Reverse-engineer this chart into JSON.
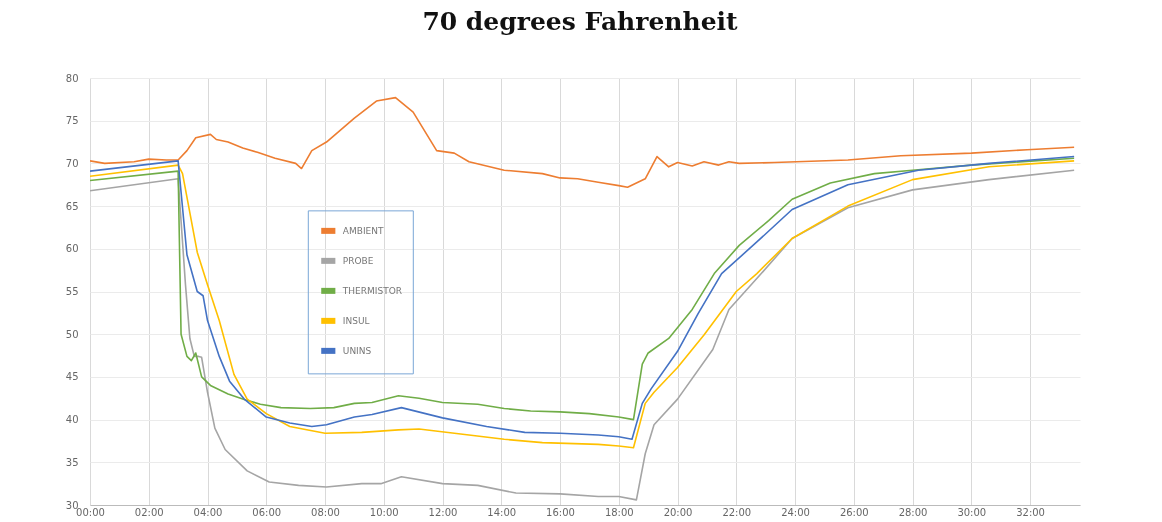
{
  "chart_data": {
    "type": "line",
    "title": "70 degrees Fahrenheit",
    "xlim": [
      0,
      33.7
    ],
    "xticks": [
      {
        "value": 0,
        "label": "00:00"
      },
      {
        "value": 2,
        "label": "02:00"
      },
      {
        "value": 4,
        "label": "04:00"
      },
      {
        "value": 6,
        "label": "06:00"
      },
      {
        "value": 8,
        "label": "08:00"
      },
      {
        "value": 10,
        "label": "10:00"
      },
      {
        "value": 12,
        "label": "12:00"
      },
      {
        "value": 14,
        "label": "14:00"
      },
      {
        "value": 16,
        "label": "16:00"
      },
      {
        "value": 18,
        "label": "18:00"
      },
      {
        "value": 20,
        "label": "20:00"
      },
      {
        "value": 22,
        "label": "22:00"
      },
      {
        "value": 24,
        "label": "24:00"
      },
      {
        "value": 26,
        "label": "26:00"
      },
      {
        "value": 28,
        "label": "28:00"
      },
      {
        "value": 30,
        "label": "30:00"
      },
      {
        "value": 32,
        "label": "32:00"
      }
    ],
    "ylim": [
      30,
      80
    ],
    "yticks": [
      30,
      35,
      40,
      45,
      50,
      55,
      60,
      65,
      70,
      75,
      80
    ],
    "grid": true,
    "legend": "left",
    "marker": "none",
    "line_style": "solid",
    "series": [
      {
        "name": "AMBIENT",
        "color": "#ed7d31",
        "x": [
          0,
          0.5,
          1.5,
          2,
          2.6,
          3.0,
          3.3,
          3.6,
          4.1,
          4.3,
          4.7,
          5.2,
          5.7,
          6.3,
          7.0,
          7.2,
          7.55,
          8.05,
          9.0,
          9.75,
          10.4,
          11.0,
          11.8,
          12.4,
          12.9,
          14.1,
          15.4,
          16.0,
          16.6,
          17.3,
          18.0,
          18.3,
          18.9,
          19.3,
          19.7,
          20.0,
          20.5,
          20.9,
          21.4,
          21.75,
          22.1,
          23.3,
          25.8,
          27.6,
          30.0,
          31.9,
          33.5
        ],
        "values": [
          70.3,
          70.0,
          70.2,
          70.5,
          70.4,
          70.4,
          71.5,
          73,
          73.4,
          72.8,
          72.5,
          71.8,
          71.3,
          70.6,
          70,
          69.4,
          71.5,
          72.5,
          75.3,
          77.3,
          77.7,
          76,
          71.5,
          71.2,
          70.2,
          69.2,
          68.8,
          68.3,
          68.2,
          67.8,
          67.4,
          67.2,
          68.2,
          70.8,
          69.6,
          70.1,
          69.7,
          70.2,
          69.8,
          70.2,
          70,
          70.1,
          70.4,
          70.9,
          71.2,
          71.6,
          71.9
        ]
      },
      {
        "name": "PROBE",
        "color": "#a5a5a5",
        "x": [
          0,
          3.0,
          3.25,
          3.4,
          3.55,
          3.7,
          3.8,
          4.0,
          4.25,
          4.6,
          5.35,
          6.1,
          7.1,
          8.05,
          9.25,
          9.9,
          10.6,
          12.0,
          13.2,
          14.5,
          16.0,
          17.3,
          18.0,
          18.6,
          18.9,
          19.2,
          20.0,
          21.2,
          21.75,
          22.85,
          23.9,
          25.8,
          28.0,
          30.6,
          33.5
        ],
        "values": [
          66.8,
          68.2,
          55.8,
          49.5,
          47.4,
          47.4,
          47.3,
          43.2,
          39,
          36.5,
          34,
          32.7,
          32.3,
          32.1,
          32.5,
          32.5,
          33.3,
          32.5,
          32.3,
          31.4,
          31.3,
          31,
          31,
          30.6,
          36,
          39.4,
          42.4,
          48.2,
          52.9,
          57.1,
          61.2,
          64.8,
          66.9,
          68.1,
          69.2
        ]
      },
      {
        "name": "THERMISTOR",
        "color": "#70ad47",
        "x": [
          0,
          3.0,
          3.1,
          3.3,
          3.45,
          3.6,
          3.8,
          4.1,
          4.7,
          5.3,
          5.8,
          6.5,
          7.5,
          8.3,
          9.0,
          9.6,
          10.5,
          11.2,
          12.0,
          13.2,
          14.1,
          15.0,
          16.0,
          17.0,
          18.0,
          18.5,
          18.8,
          19.0,
          19.7,
          20.5,
          21.25,
          22.1,
          23.1,
          23.9,
          25.2,
          26.7,
          28.0,
          30.0,
          33.5
        ],
        "values": [
          68,
          69.1,
          50,
          47.4,
          46.9,
          47.8,
          45,
          44,
          43,
          42.3,
          41.8,
          41.4,
          41.3,
          41.4,
          41.9,
          42,
          42.8,
          42.5,
          42,
          41.8,
          41.3,
          41,
          40.9,
          40.7,
          40.3,
          40,
          46.5,
          47.8,
          49.5,
          52.9,
          57.1,
          60.4,
          63.3,
          65.8,
          67.7,
          68.8,
          69.2,
          69.8,
          70.6
        ]
      },
      {
        "name": "INSUL",
        "color": "#ffc000",
        "x": [
          0,
          3.0,
          3.15,
          3.65,
          4.0,
          4.4,
          4.9,
          5.35,
          6.0,
          6.8,
          8.0,
          9.25,
          10.5,
          11.2,
          12.9,
          14.1,
          15.4,
          17.3,
          18.0,
          18.5,
          18.9,
          19.2,
          20.0,
          20.9,
          22.0,
          22.7,
          23.9,
          25.8,
          28.0,
          30.6,
          33.5
        ],
        "values": [
          68.5,
          69.8,
          68.8,
          59.6,
          55.8,
          51.6,
          45.3,
          42.4,
          40.7,
          39.2,
          38.4,
          38.5,
          38.8,
          38.9,
          38.2,
          37.7,
          37.3,
          37.1,
          36.9,
          36.7,
          41.9,
          43.2,
          46.1,
          49.9,
          55,
          57.1,
          61.2,
          65,
          68.1,
          69.6,
          70.3
        ]
      },
      {
        "name": "UNINS",
        "color": "#4472c4",
        "x": [
          0,
          3.0,
          3.3,
          3.65,
          3.85,
          4.0,
          4.4,
          4.75,
          5.25,
          6.0,
          6.8,
          7.55,
          8.05,
          9.0,
          9.6,
          10.6,
          12.0,
          13.5,
          14.8,
          16.0,
          17.3,
          18.0,
          18.45,
          18.8,
          19.1,
          20.0,
          20.7,
          21.5,
          22.7,
          23.9,
          25.8,
          28.2,
          30.6,
          33.5
        ],
        "values": [
          69.1,
          70.3,
          59.3,
          55,
          54.5,
          51.6,
          47.4,
          44.5,
          42.4,
          40.3,
          39.6,
          39.2,
          39.4,
          40.3,
          40.6,
          41.4,
          40.2,
          39.2,
          38.5,
          38.4,
          38.2,
          38,
          37.7,
          41.9,
          43.6,
          48,
          52.4,
          57.1,
          60.8,
          64.6,
          67.5,
          69.2,
          70,
          70.8
        ]
      }
    ]
  }
}
